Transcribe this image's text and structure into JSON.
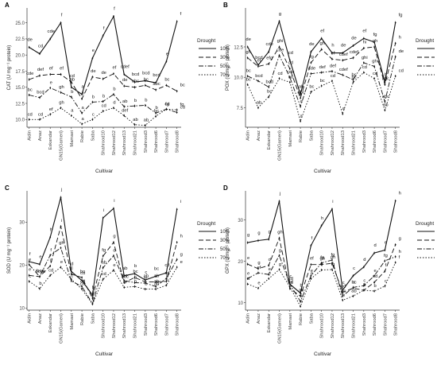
{
  "chart_data": [
    {
      "panel": "A",
      "type": "line",
      "ylabel": "CAT (U mg⁻¹ protein)",
      "xlabel": "Cultivar",
      "categories": [
        "Aidin",
        "Anaz",
        "Eskandar",
        "GN15(Gameri)",
        "Mamaei",
        "Rabie",
        "Saba",
        "Shahrood10",
        "Shahrood12",
        "Shahrood13",
        "Shahrood21",
        "Shahrood3",
        "Shahrood6",
        "Shahrood7",
        "Shahrood8"
      ],
      "yticks": [
        10.0,
        12.5,
        15.0,
        17.5,
        20.0,
        22.5,
        25.0
      ],
      "ylim": [
        8.8,
        27.3
      ],
      "legend_title": "Drought",
      "series": [
        {
          "name": "10%",
          "values": [
            21.2,
            20.2,
            22.5,
            25.0,
            15.0,
            13.9,
            19.5,
            23.0,
            26.0,
            17.0,
            15.8,
            16.0,
            15.7,
            19.0,
            25.2
          ],
          "letters": [
            "de",
            "cd",
            "cde",
            "f",
            "ab",
            "a",
            "e",
            "f",
            "f",
            "cdef",
            "bcd",
            "bcd",
            "bcd",
            "e",
            "f"
          ]
        },
        {
          "name": "30%",
          "values": [
            16.2,
            16.8,
            17.0,
            17.0,
            15.8,
            13.2,
            16.6,
            16.3,
            17.1,
            15.2,
            15.0,
            15.3,
            14.6,
            15.3,
            14.4
          ],
          "letters": [
            "cde",
            "def",
            "ef",
            "ef",
            "cd",
            "a",
            "de",
            "de",
            "ef",
            "de",
            "abc",
            "bc",
            "abc",
            "bc",
            "bc"
          ]
        },
        {
          "name": "50%",
          "values": [
            13.8,
            13.4,
            14.9,
            14.2,
            13.5,
            11.0,
            12.7,
            12.8,
            13.9,
            12.0,
            12.1,
            12.2,
            11.0,
            11.6,
            11.1
          ],
          "letters": [
            "bc",
            "bcd",
            "e",
            "gh",
            "b",
            "a",
            "b",
            "b",
            "b",
            "ab",
            "b",
            "b",
            "b",
            "cd",
            "cd"
          ]
        },
        {
          "name": "70%",
          "values": [
            10.0,
            10.0,
            10.8,
            11.8,
            10.6,
            9.3,
            10.0,
            11.3,
            11.8,
            10.6,
            9.2,
            9.1,
            10.5,
            11.6,
            11.5
          ],
          "letters": [
            "cd",
            "cd",
            "ef",
            "gh",
            "a",
            "a",
            "c",
            "cd",
            "d",
            "def",
            "ab",
            "ab",
            "bc",
            "fg",
            "fg"
          ]
        }
      ]
    },
    {
      "panel": "B",
      "type": "line",
      "ylabel": "POX (U mg⁻¹ protein)",
      "xlabel": "Cultivar",
      "categories": [
        "Aidin",
        "Anaz",
        "Eskandar",
        "GN15(Gameri)",
        "Mamaei",
        "Rabie",
        "Saba",
        "Shahrood10",
        "Shahrood12",
        "Shahrood13",
        "Shahrood21",
        "Shahrood3",
        "Shahrood6",
        "Shahrood7",
        "Shahrood8"
      ],
      "yticks": [
        7.5,
        10.0,
        12.5
      ],
      "ylim": [
        5.9,
        15.7
      ],
      "legend_title": "Drought",
      "series": [
        {
          "name": "10%",
          "values": [
            12.5,
            11.0,
            12.1,
            14.6,
            11.4,
            8.6,
            12.1,
            13.2,
            12.0,
            12.0,
            12.6,
            13.2,
            12.9,
            9.6,
            14.5
          ],
          "letters": [
            "de",
            "bcd",
            "cde",
            "g",
            "cd",
            "ab",
            "de",
            "ef",
            "h",
            "de",
            "de",
            "ef",
            "fg",
            "b",
            "fg"
          ]
        },
        {
          "name": "30%",
          "values": [
            11.6,
            10.9,
            11.1,
            12.5,
            10.7,
            8.3,
            11.2,
            12.3,
            11.5,
            11.4,
            11.6,
            12.4,
            12.5,
            9.4,
            12.8
          ],
          "letters": [
            "gh",
            "ef",
            "efg",
            "ghi",
            "cd",
            "abc",
            "fg",
            "gh",
            "ef",
            "cdef",
            "cdef",
            "hi",
            "gh",
            "abc",
            "h"
          ]
        },
        {
          "name": "50%",
          "values": [
            10.1,
            9.7,
            9.2,
            11.8,
            10.0,
            7.6,
            10.3,
            10.4,
            10.5,
            10.2,
            9.8,
            11.2,
            10.9,
            8.0,
            11.7
          ],
          "letters": [
            "bc",
            "bcd",
            "bcd",
            "cde",
            "cde",
            "a",
            "cde",
            "def",
            "def",
            "cdef",
            "bc",
            "ghi",
            "ghi",
            "abc",
            "de"
          ]
        },
        {
          "name": "70%",
          "values": [
            9.4,
            7.5,
            8.4,
            9.9,
            9.6,
            6.4,
            8.8,
            9.3,
            9.7,
            7.0,
            9.6,
            10.4,
            9.9,
            7.3,
            10.1
          ],
          "letters": [
            "bc",
            "ab",
            "bc",
            "cd",
            "cd",
            "a",
            "bc",
            "bc",
            "cd",
            "a",
            "bc",
            "cd",
            "cd",
            "ab",
            "cd"
          ]
        }
      ]
    },
    {
      "panel": "C",
      "type": "line",
      "ylabel": "SOD (U mg⁻¹ protein)",
      "xlabel": "Cultivar",
      "categories": [
        "Aidin",
        "Anaz",
        "Eskandar",
        "GN15(Gameri)",
        "Mamaei",
        "Rabie",
        "Saba",
        "Shahrood10",
        "Shahrood12",
        "Shahrood13",
        "Shahrood21",
        "Shahrood3",
        "Shahrood6",
        "Shahrood7",
        "Shahrood8"
      ],
      "yticks": [
        10,
        20,
        30
      ],
      "ylim": [
        9.5,
        37.3
      ],
      "legend_title": "Drought",
      "series": [
        {
          "name": "10%",
          "values": [
            20.8,
            20.2,
            26.5,
            35.8,
            18.5,
            16.4,
            13.0,
            31.0,
            33.2,
            17.5,
            18.0,
            16.5,
            17.4,
            18.2,
            33.0
          ],
          "letters": [
            "f",
            "e",
            "h",
            "j",
            "d",
            "cd",
            "b",
            "i",
            "i",
            "ab",
            "b",
            "c",
            "bc",
            "cd",
            "i"
          ]
        },
        {
          "name": "30%",
          "values": [
            17.6,
            17.3,
            19.8,
            29.0,
            17.9,
            17.1,
            12.3,
            22.1,
            25.3,
            15.9,
            17.1,
            16.1,
            16.1,
            16.2,
            25.3
          ],
          "letters": [
            "e",
            "bcd",
            "g",
            "i",
            "c",
            "bc",
            "a",
            "fg",
            "g",
            "abc",
            "bc",
            "ab",
            "ab",
            "a",
            "h"
          ]
        },
        {
          "name": "50%",
          "values": [
            20.1,
            17.3,
            22.3,
            24.0,
            16.3,
            15.0,
            11.0,
            19.4,
            22.2,
            16.4,
            15.9,
            15.8,
            15.0,
            16.9,
            21.3
          ],
          "letters": [
            "e",
            "bcde",
            "f",
            "gh",
            "c",
            "cd",
            "a",
            "ab",
            "d",
            "bc",
            "b",
            "bc",
            "ab",
            "cd",
            "g"
          ]
        },
        {
          "name": "70%",
          "values": [
            16.2,
            14.5,
            17.6,
            19.5,
            16.7,
            14.4,
            10.9,
            16.7,
            18.8,
            14.8,
            15.0,
            14.4,
            14.4,
            15.3,
            19.5
          ],
          "letters": [
            "c",
            "b",
            "cd",
            "e",
            "c",
            "cd",
            "a",
            "cd",
            "e",
            "b",
            "b",
            "b",
            "ab",
            "b",
            "e"
          ]
        }
      ]
    },
    {
      "panel": "D",
      "type": "line",
      "ylabel": "GPX (U mg⁻¹ protein)",
      "xlabel": "Cultivar",
      "categories": [
        "Aidin",
        "Anaz",
        "Eskandar",
        "GN15(Gameri)",
        "Mamaei",
        "Rabie",
        "Saba",
        "Shahrood10",
        "Shahrood12",
        "Shahrood13",
        "Shahrood21",
        "Shahrood3",
        "Shahrood6",
        "Shahrood7",
        "Shahrood8"
      ],
      "yticks": [
        10,
        20,
        30
      ],
      "ylim": [
        8.2,
        37.0
      ],
      "legend_title": "Drought",
      "series": [
        {
          "name": "10%",
          "values": [
            24.5,
            25.0,
            25.3,
            34.5,
            14.5,
            12.3,
            23.8,
            28.6,
            32.6,
            13.0,
            16.5,
            18.6,
            22.0,
            22.7,
            34.6
          ],
          "letters": [
            "g",
            "g",
            "g",
            "j",
            "c",
            "b",
            "f",
            "h",
            "i",
            "c",
            "c",
            "d",
            "d",
            "e",
            "h"
          ]
        },
        {
          "name": "30%",
          "values": [
            19.3,
            18.2,
            19.0,
            25.6,
            13.4,
            11.6,
            19.2,
            19.2,
            19.5,
            12.5,
            13.5,
            13.0,
            14.9,
            17.6,
            24.0
          ],
          "letters": [
            "e",
            "g",
            "d",
            "gh",
            "cd",
            "ab",
            "ef",
            "gh",
            "gh",
            "cd",
            "bc",
            "c",
            "cd",
            "f",
            "g"
          ]
        },
        {
          "name": "50%",
          "values": [
            15.8,
            17.2,
            16.8,
            21.4,
            14.5,
            10.3,
            16.5,
            19.6,
            20.3,
            11.6,
            13.7,
            14.1,
            16.5,
            20.1,
            21.1
          ],
          "letters": [
            "e",
            "ef",
            "e",
            "g",
            "cd",
            "a",
            "e",
            "fg",
            "fg",
            "bc",
            "c",
            "c",
            "e",
            "fg",
            "h"
          ]
        },
        {
          "name": "70%",
          "values": [
            14.5,
            13.5,
            15.8,
            18.0,
            13.8,
            9.1,
            15.8,
            17.9,
            18.0,
            10.6,
            11.6,
            13.0,
            12.8,
            14.0,
            19.7
          ],
          "letters": [
            "d",
            "e",
            "e",
            "g",
            "cd",
            "a",
            "e",
            "f",
            "fg",
            "a",
            "ab",
            "b",
            "b",
            "c",
            "f"
          ]
        }
      ]
    }
  ]
}
